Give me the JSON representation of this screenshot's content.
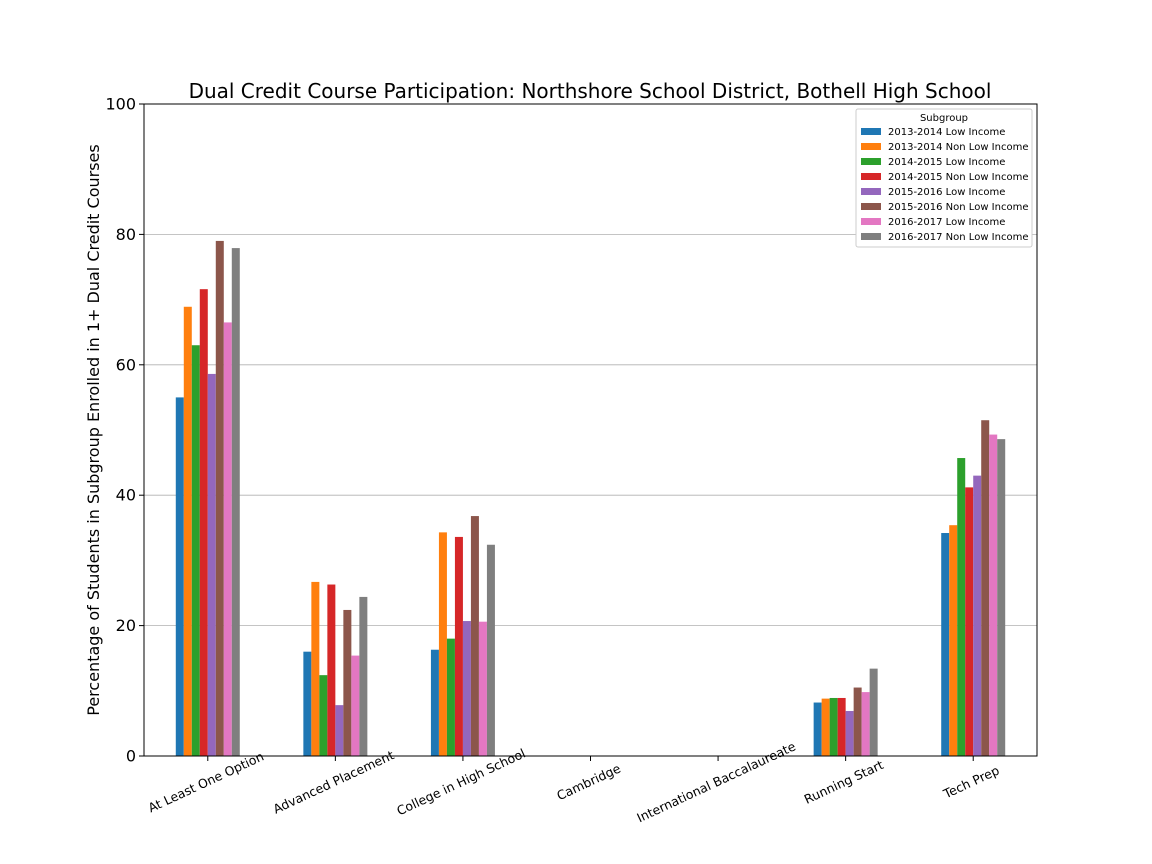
{
  "chart_data": {
    "type": "bar",
    "title": "Dual Credit Course Participation: Northshore School District, Bothell High School",
    "ylabel": "Percentage of Students in Subgroup Enrolled in 1+ Dual Credit Courses",
    "xlabel": "",
    "ylim": [
      0,
      100
    ],
    "yticks": [
      "0",
      "20",
      "40",
      "60",
      "80",
      "100"
    ],
    "grid": "horizontal",
    "legend_title": "Subgroup",
    "legend_position": "top-right",
    "categories": [
      "At Least One Option",
      "Advanced Placement",
      "College in High School",
      "Cambridge",
      "International Baccalaureate",
      "Running Start",
      "Tech Prep"
    ],
    "series": [
      {
        "name": "2013-2014 Low Income",
        "color": "#1f77b4",
        "values": [
          55.0,
          16.0,
          16.3,
          0,
          0,
          8.2,
          34.2
        ]
      },
      {
        "name": "2013-2014 Non Low Income",
        "color": "#ff7f0e",
        "values": [
          68.9,
          26.7,
          34.3,
          0,
          0,
          8.8,
          35.4
        ]
      },
      {
        "name": "2014-2015 Low Income",
        "color": "#2ca02c",
        "values": [
          63.0,
          12.4,
          18.0,
          0,
          0,
          8.9,
          45.7
        ]
      },
      {
        "name": "2014-2015 Non Low Income",
        "color": "#d62728",
        "values": [
          71.6,
          26.3,
          33.6,
          0,
          0,
          8.9,
          41.2
        ]
      },
      {
        "name": "2015-2016 Low Income",
        "color": "#9467bd",
        "values": [
          58.6,
          7.8,
          20.7,
          0,
          0,
          6.9,
          43.0
        ]
      },
      {
        "name": "2015-2016 Non Low Income",
        "color": "#8c564b",
        "values": [
          79.0,
          22.4,
          36.8,
          0,
          0,
          10.5,
          51.5
        ]
      },
      {
        "name": "2016-2017 Low Income",
        "color": "#e377c2",
        "values": [
          66.5,
          15.4,
          20.6,
          0,
          0,
          9.8,
          49.3
        ]
      },
      {
        "name": "2016-2017 Non Low Income",
        "color": "#7f7f7f",
        "values": [
          77.9,
          24.4,
          32.4,
          0,
          0,
          13.4,
          48.6
        ]
      }
    ]
  }
}
